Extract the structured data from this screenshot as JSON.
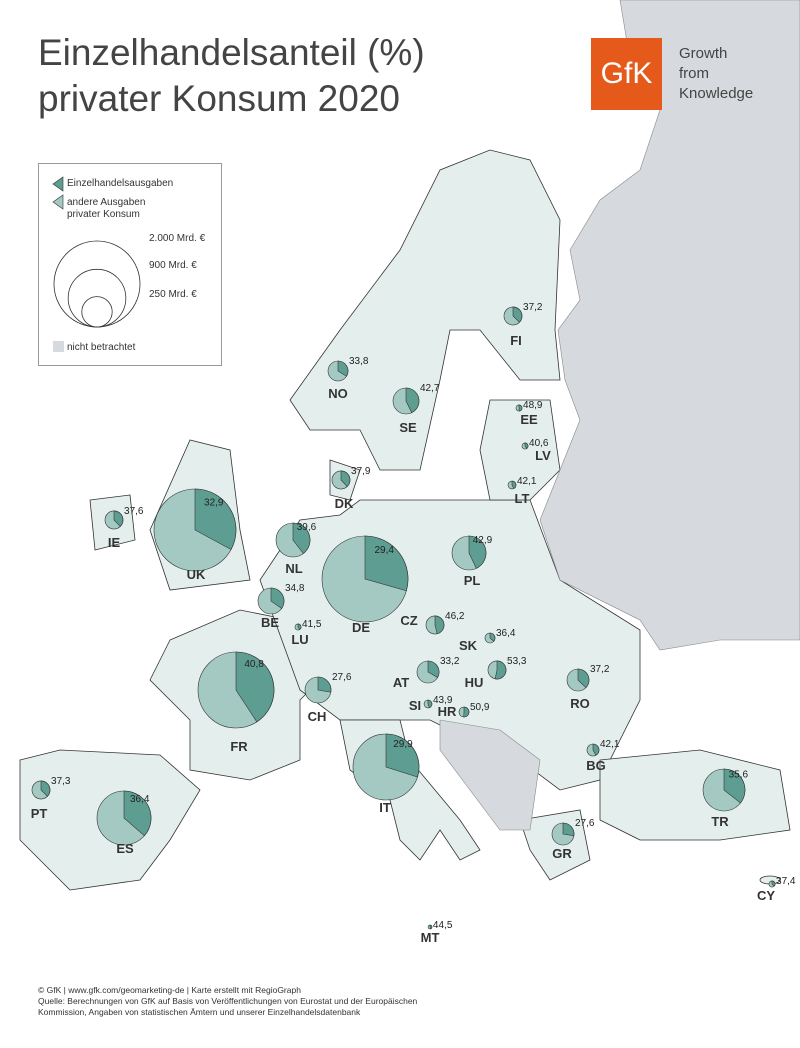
{
  "title_lines": [
    "Einzelhandelsanteil (%)",
    "privater Konsum 2020"
  ],
  "logo": {
    "mark": "GfK",
    "lines": [
      "Growth",
      "from",
      "Knowledge"
    ]
  },
  "excluded_label": "nicht betrachtet",
  "footer": [
    "© GfK | www.gfk.com/geomarketing-de | Karte erstellt mit RegioGraph",
    "Quelle: Berechnungen von GfK auf Basis von Veröffentlichungen von Eurostat und der Europäischen",
    "Kommission, Angaben von statistischen Ämtern und unserer Einzelhandelsdatenbank"
  ],
  "chart_data": {
    "type": "pie-map",
    "series": [
      {
        "name": "Einzelhandelsausgaben",
        "color": "#5e9e92"
      },
      {
        "name": "andere Ausgaben privater Konsum",
        "color": "#a3c9c2"
      }
    ],
    "size_legend": [
      {
        "value": 2000,
        "label": "2.000 Mrd. €"
      },
      {
        "value": 900,
        "label": "900 Mrd. €"
      },
      {
        "value": 250,
        "label": "250 Mrd. €"
      }
    ],
    "categories": [
      "FI",
      "NO",
      "SE",
      "EE",
      "LV",
      "LT",
      "DK",
      "IE",
      "UK",
      "NL",
      "DE",
      "PL",
      "BE",
      "LU",
      "CZ",
      "SK",
      "AT",
      "HU",
      "CH",
      "SI",
      "HR",
      "RO",
      "FR",
      "BG",
      "IT",
      "PT",
      "ES",
      "GR",
      "TR",
      "CY",
      "MT"
    ],
    "values": [
      37.2,
      33.8,
      42.7,
      48.9,
      40.6,
      42.1,
      37.9,
      37.6,
      32.9,
      39.6,
      29.4,
      42.9,
      34.8,
      41.5,
      46.2,
      36.4,
      33.2,
      53.3,
      27.6,
      43.9,
      50.9,
      37.2,
      40.8,
      42.1,
      29.9,
      37.3,
      36.4,
      27.6,
      35.6,
      37.4,
      44.5
    ],
    "value_labels": [
      "37,2",
      "33,8",
      "42,7",
      "48,9",
      "40,6",
      "42,1",
      "37,9",
      "37,6",
      "32,9",
      "39,6",
      "29,4",
      "42,9",
      "34,8",
      "41,5",
      "46,2",
      "36,4",
      "33,2",
      "53,3",
      "27,6",
      "43,9",
      "50,9",
      "37,2",
      "40,8",
      "42,1",
      "29,9",
      "37,3",
      "36,4",
      "27,6",
      "35,6",
      "37,4",
      "44,5"
    ],
    "sizes": [
      88,
      108,
      183,
      10,
      10,
      17,
      88,
      88,
      1818,
      313,
      2000,
      313,
      183,
      10,
      88,
      27,
      131,
      88,
      183,
      17,
      27,
      131,
      1562,
      39,
      1178,
      88,
      789,
      131,
      477,
      10,
      4
    ]
  }
}
